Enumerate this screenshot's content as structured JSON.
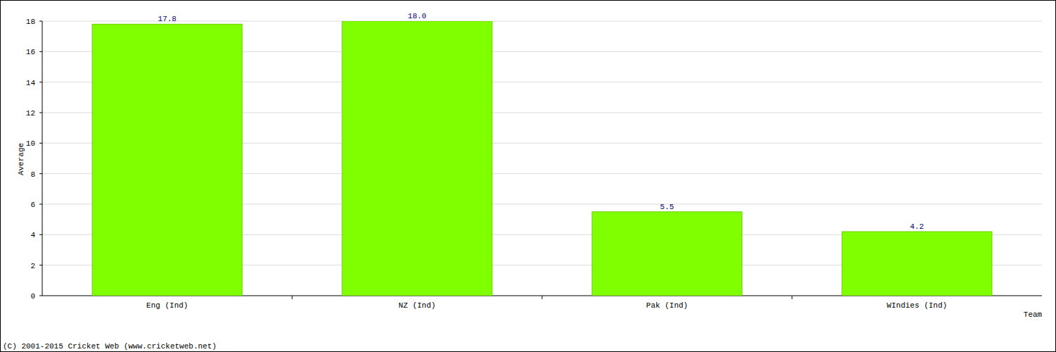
{
  "chart_data": {
    "type": "bar",
    "x_label": "Team",
    "y_label": "Average",
    "categories": [
      "Eng (Ind)",
      "NZ (Ind)",
      "Pak (Ind)",
      "WIndies (Ind)"
    ],
    "values": [
      17.8,
      18.0,
      5.5,
      4.2
    ],
    "value_labels": [
      "17.8",
      "18.0",
      "5.5",
      "4.2"
    ],
    "color": "#80ff00",
    "ylim": [
      0,
      18
    ],
    "yticks": [
      0,
      2,
      4,
      6,
      8,
      10,
      12,
      14,
      16,
      18
    ],
    "grid": true,
    "data_labels": true,
    "annotations": [
      "(C) 2001-2015 Cricket Web (www.cricketweb.net)"
    ]
  }
}
